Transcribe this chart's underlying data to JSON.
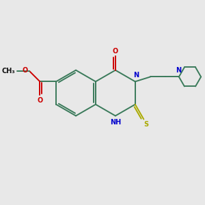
{
  "bg_color": "#e8e8e8",
  "bond_color": "#3a7a5a",
  "n_color": "#0000cc",
  "o_color": "#cc0000",
  "s_color": "#aaaa00",
  "line_width": 1.4,
  "fig_size": [
    3.0,
    3.0
  ],
  "dpi": 100,
  "xlim": [
    0,
    10
  ],
  "ylim": [
    0,
    10
  ]
}
